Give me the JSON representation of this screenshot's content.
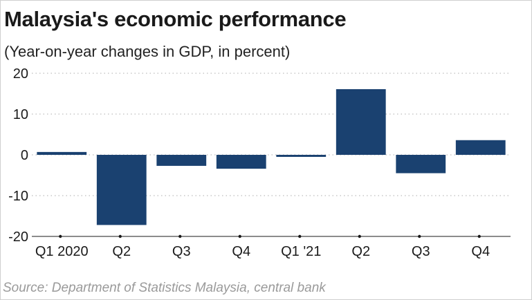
{
  "chart_data": {
    "type": "bar",
    "title": "Malaysia's economic performance",
    "subtitle": "(Year-on-year changes in GDP, in percent)",
    "categories": [
      "Q1 2020",
      "Q2",
      "Q3",
      "Q4",
      "Q1 '21",
      "Q2",
      "Q3",
      "Q4"
    ],
    "values": [
      0.7,
      -17.2,
      -2.7,
      -3.4,
      -0.5,
      16.1,
      -4.5,
      3.6
    ],
    "ylim": [
      -20,
      20
    ],
    "yticks": [
      20,
      10,
      0,
      -10,
      -20
    ],
    "grid": true,
    "xlabel": "",
    "ylabel": "",
    "bar_color": "#1a4170",
    "source": "Source: Department of Statistics Malaysia, central bank"
  }
}
